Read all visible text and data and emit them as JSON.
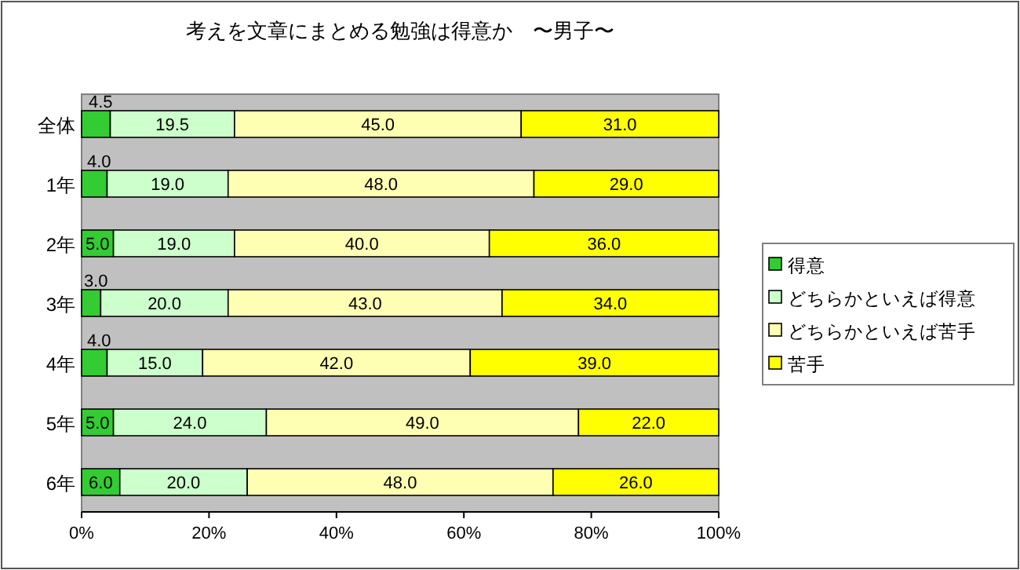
{
  "chart_data": {
    "type": "bar",
    "orientation": "horizontal",
    "stacked": true,
    "title": "考えを文章にまとめる勉強は得意か　〜男子〜",
    "categories": [
      "全体",
      "1年",
      "2年",
      "3年",
      "4年",
      "5年",
      "6年"
    ],
    "series": [
      {
        "name": "得意",
        "color": "#33cc33",
        "values": [
          4.5,
          4.0,
          5.0,
          3.0,
          4.0,
          5.0,
          6.0
        ],
        "value_labels": [
          "4.5",
          "4.0",
          "5.0",
          "3.0",
          "4.0",
          "5.0",
          "6.0"
        ]
      },
      {
        "name": "どちらかといえば得意",
        "color": "#ccffcc",
        "values": [
          19.5,
          19.0,
          19.0,
          20.0,
          15.0,
          24.0,
          20.0
        ],
        "value_labels": [
          "19.5",
          "19.0",
          "19.0",
          "20.0",
          "15.0",
          "24.0",
          "20.0"
        ]
      },
      {
        "name": "どちらかといえば苦手",
        "color": "#ffffb3",
        "values": [
          45.0,
          48.0,
          40.0,
          43.0,
          42.0,
          49.0,
          48.0
        ],
        "value_labels": [
          "45.0",
          "48.0",
          "40.0",
          "43.0",
          "42.0",
          "49.0",
          "48.0"
        ]
      },
      {
        "name": "苦手",
        "color": "#ffff00",
        "values": [
          31.0,
          29.0,
          36.0,
          34.0,
          39.0,
          22.0,
          26.0
        ],
        "value_labels": [
          "31.0",
          "29.0",
          "36.0",
          "34.0",
          "39.0",
          "22.0",
          "26.0"
        ]
      }
    ],
    "xlim": [
      0,
      100
    ],
    "xticks": [
      {
        "value": 0,
        "label": "0%"
      },
      {
        "value": 20,
        "label": "20%"
      },
      {
        "value": 40,
        "label": "40%"
      },
      {
        "value": 60,
        "label": "60%"
      },
      {
        "value": 80,
        "label": "80%"
      },
      {
        "value": 100,
        "label": "100%"
      }
    ],
    "legend": "right",
    "grid": false
  }
}
